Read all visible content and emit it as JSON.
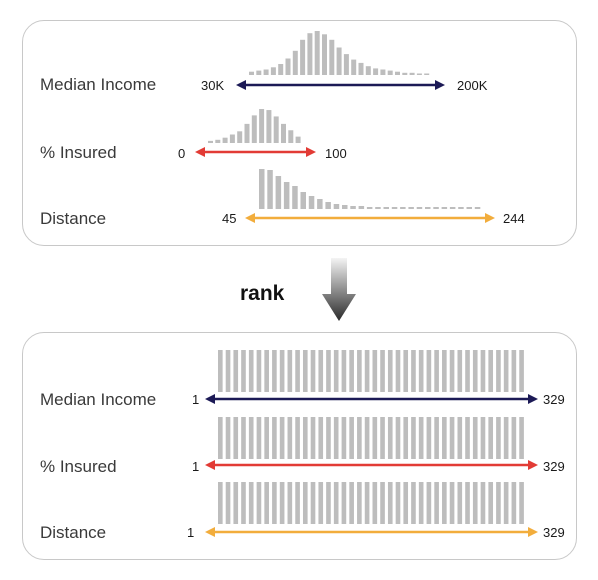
{
  "colors": {
    "income": "#1c1a56",
    "insured": "#e23b35",
    "distance": "#f2ad3c",
    "bar": "#bdbdbd"
  },
  "transform_label": "rank",
  "top": {
    "rows": [
      {
        "key": "income",
        "label": "Median Income",
        "min": "30K",
        "max": "200K",
        "hist": [
          3,
          4,
          5,
          7,
          10,
          15,
          22,
          32,
          38,
          40,
          37,
          32,
          25,
          19,
          14,
          11,
          8,
          6,
          5,
          4,
          3,
          2,
          2,
          1,
          1
        ]
      },
      {
        "key": "insured",
        "label": "% Insured",
        "min": "0",
        "max": "100",
        "hist": [
          2,
          3,
          5,
          8,
          11,
          18,
          26,
          32,
          31,
          25,
          18,
          12,
          6
        ]
      },
      {
        "key": "distance",
        "label": "Distance",
        "min": "45",
        "max": "244",
        "hist": [
          40,
          39,
          33,
          27,
          23,
          17,
          13,
          10,
          7,
          5,
          4,
          3,
          3,
          2,
          2,
          2,
          2,
          2,
          2,
          2,
          2,
          2,
          2,
          2,
          2,
          2,
          2
        ]
      }
    ]
  },
  "bottom": {
    "rows": [
      {
        "key": "income",
        "label": "Median Income",
        "min": "1",
        "max": "329",
        "bars": 40
      },
      {
        "key": "insured",
        "label": "% Insured",
        "min": "1",
        "max": "329",
        "bars": 40
      },
      {
        "key": "distance",
        "label": "Distance",
        "min": "1",
        "max": "329",
        "bars": 40
      }
    ]
  }
}
